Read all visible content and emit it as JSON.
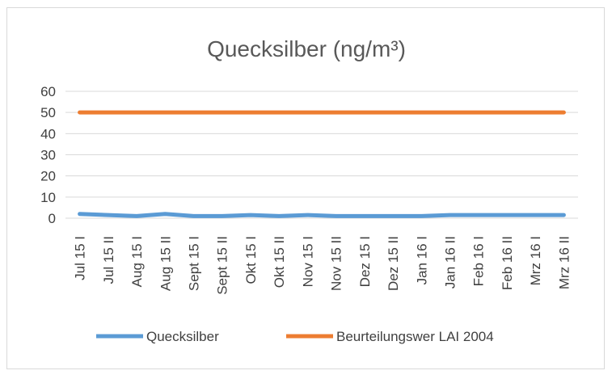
{
  "chart_data": {
    "type": "line",
    "title": "Quecksilber (ng/m³)",
    "xlabel": "",
    "ylabel": "",
    "categories": [
      "Jul 15 I",
      "Jul 15 II",
      "Aug 15 I",
      "Aug 15 II",
      "Sept 15 I",
      "Sept 15 II",
      "Okt 15 I",
      "Okt 15 II",
      "Nov 15 I",
      "Nov 15 II",
      "Dez 15 I",
      "Dez 15 II",
      "Jan 16 I",
      "Jan 16 II",
      "Feb 16 I",
      "Feb 16 II",
      "Mrz 16 I",
      "Mrz 16 II"
    ],
    "ylim": [
      0,
      60
    ],
    "yticks": [
      0,
      10,
      20,
      30,
      40,
      50,
      60
    ],
    "grid": true,
    "legend_position": "bottom",
    "series": [
      {
        "name": "Quecksilber",
        "color": "#5b9bd5",
        "values": [
          2.0,
          1.5,
          1.0,
          2.0,
          1.0,
          1.0,
          1.5,
          1.0,
          1.5,
          1.0,
          1.0,
          1.0,
          1.0,
          1.5,
          1.5,
          1.5,
          1.5,
          1.5
        ]
      },
      {
        "name": "Beurteilungswer LAI 2004",
        "color": "#ed7d31",
        "values": [
          50,
          50,
          50,
          50,
          50,
          50,
          50,
          50,
          50,
          50,
          50,
          50,
          50,
          50,
          50,
          50,
          50,
          50
        ]
      }
    ]
  }
}
